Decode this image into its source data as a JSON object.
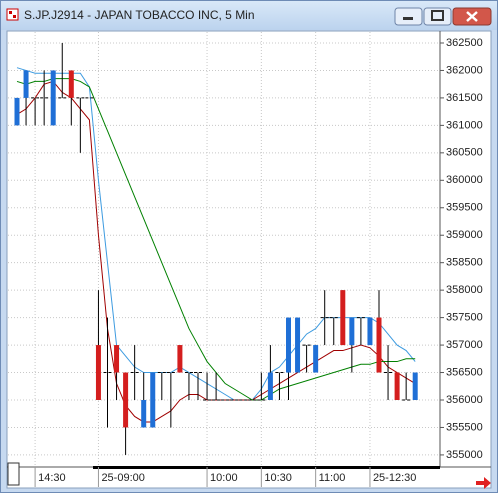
{
  "chart_data": {
    "type": "candlestick",
    "title": "S.JP.J2914 - JAPAN TOBACCO INC, 5 Min",
    "categories": [
      null,
      null,
      "14:30",
      null,
      null,
      null,
      null,
      null,
      null,
      "25-09:00",
      null,
      null,
      null,
      null,
      null,
      null,
      null,
      null,
      null,
      null,
      null,
      "10:00",
      null,
      null,
      null,
      null,
      null,
      "10:30",
      null,
      null,
      null,
      null,
      null,
      "11:00",
      null,
      null,
      null,
      null,
      null,
      "25-12:30",
      null,
      null,
      null,
      null,
      null
    ],
    "open": [
      361000,
      361500,
      361500,
      361500,
      361000,
      361500,
      362000,
      361500,
      361500,
      357000,
      356500,
      357000,
      356500,
      356500,
      355500,
      355500,
      356500,
      356500,
      357000,
      356500,
      356500,
      356000,
      356000,
      356000,
      356000,
      356000,
      356000,
      356000,
      356000,
      356500,
      356500,
      356500,
      357000,
      356500,
      357500,
      357500,
      358000,
      357000,
      357500,
      357000,
      357500,
      356500,
      356500,
      356000,
      356000
    ],
    "high": [
      361500,
      362000,
      361500,
      362000,
      362000,
      362500,
      362000,
      361500,
      361500,
      358000,
      357500,
      357000,
      356500,
      357000,
      356500,
      356500,
      356500,
      356500,
      357000,
      356500,
      356500,
      356500,
      356500,
      356000,
      356000,
      356000,
      356000,
      356500,
      357000,
      356500,
      357500,
      357500,
      357000,
      357000,
      358000,
      357500,
      358000,
      357500,
      357500,
      357500,
      358000,
      357000,
      356500,
      356500,
      356500
    ],
    "low": [
      361000,
      361000,
      361000,
      361000,
      361000,
      361500,
      361000,
      360500,
      361500,
      356000,
      355500,
      356000,
      355000,
      356000,
      355500,
      355500,
      356000,
      355500,
      356500,
      356000,
      356000,
      356000,
      356000,
      356000,
      356000,
      356000,
      356000,
      356000,
      356000,
      356000,
      356000,
      356500,
      356500,
      356500,
      357000,
      357000,
      357000,
      356500,
      357000,
      357000,
      356500,
      356000,
      356000,
      356000,
      356000
    ],
    "close": [
      361500,
      362000,
      361500,
      361500,
      362000,
      361500,
      361500,
      361500,
      361500,
      356000,
      356500,
      356500,
      355500,
      356500,
      356000,
      356500,
      356500,
      356500,
      356500,
      356500,
      356500,
      356000,
      356000,
      356000,
      356000,
      356000,
      356000,
      356000,
      356500,
      356500,
      357500,
      357500,
      357000,
      357000,
      357500,
      357500,
      357000,
      357500,
      357500,
      357500,
      356500,
      356500,
      356000,
      356000,
      356500
    ],
    "up_color": "#1f6fd6",
    "down_color": "#d41e1e",
    "lines": [
      {
        "color": "#3d9be0",
        "values": [
          362050,
          362000,
          361950,
          361950,
          361950,
          361950,
          361950,
          361950,
          361700,
          360000,
          358500,
          357000,
          356800,
          356600,
          356500,
          356500,
          356500,
          356500,
          356600,
          356500,
          356400,
          356300,
          356200,
          356100,
          356000,
          356000,
          356000,
          356200,
          356500,
          356600,
          356800,
          357000,
          357200,
          357300,
          357500,
          357500,
          357500,
          357500,
          357500,
          357500,
          357400,
          357200,
          357000,
          356900,
          356700
        ]
      },
      {
        "color": "#a00000",
        "values": [
          361200,
          361300,
          361500,
          361750,
          361800,
          361600,
          361500,
          361300,
          361100,
          359000,
          357300,
          356300,
          355900,
          355700,
          355600,
          355600,
          355700,
          355800,
          356000,
          356100,
          356100,
          356000,
          356000,
          356000,
          356000,
          356000,
          356000,
          356100,
          356200,
          356300,
          356400,
          356500,
          356600,
          356700,
          356800,
          356900,
          356900,
          356950,
          357000,
          356950,
          356800,
          356600,
          356500,
          356400,
          356300
        ]
      },
      {
        "color": "#008000",
        "values": [
          361800,
          361750,
          361800,
          361800,
          361850,
          361850,
          361850,
          361800,
          361700,
          361300,
          360900,
          360500,
          360100,
          359700,
          359300,
          358900,
          358500,
          358100,
          357700,
          357300,
          357000,
          356700,
          356500,
          356300,
          356200,
          356100,
          356000,
          356000,
          356100,
          356200,
          356250,
          356300,
          356350,
          356400,
          356450,
          356500,
          356550,
          356600,
          356650,
          356650,
          356700,
          356700,
          356700,
          356750,
          356750
        ]
      }
    ],
    "ylim": [
      354780,
      362700
    ],
    "yticks": [
      355000,
      355500,
      356000,
      356500,
      357000,
      357500,
      358000,
      358500,
      359000,
      359500,
      360000,
      360500,
      361000,
      361500,
      362000,
      362500
    ],
    "grid": true
  }
}
